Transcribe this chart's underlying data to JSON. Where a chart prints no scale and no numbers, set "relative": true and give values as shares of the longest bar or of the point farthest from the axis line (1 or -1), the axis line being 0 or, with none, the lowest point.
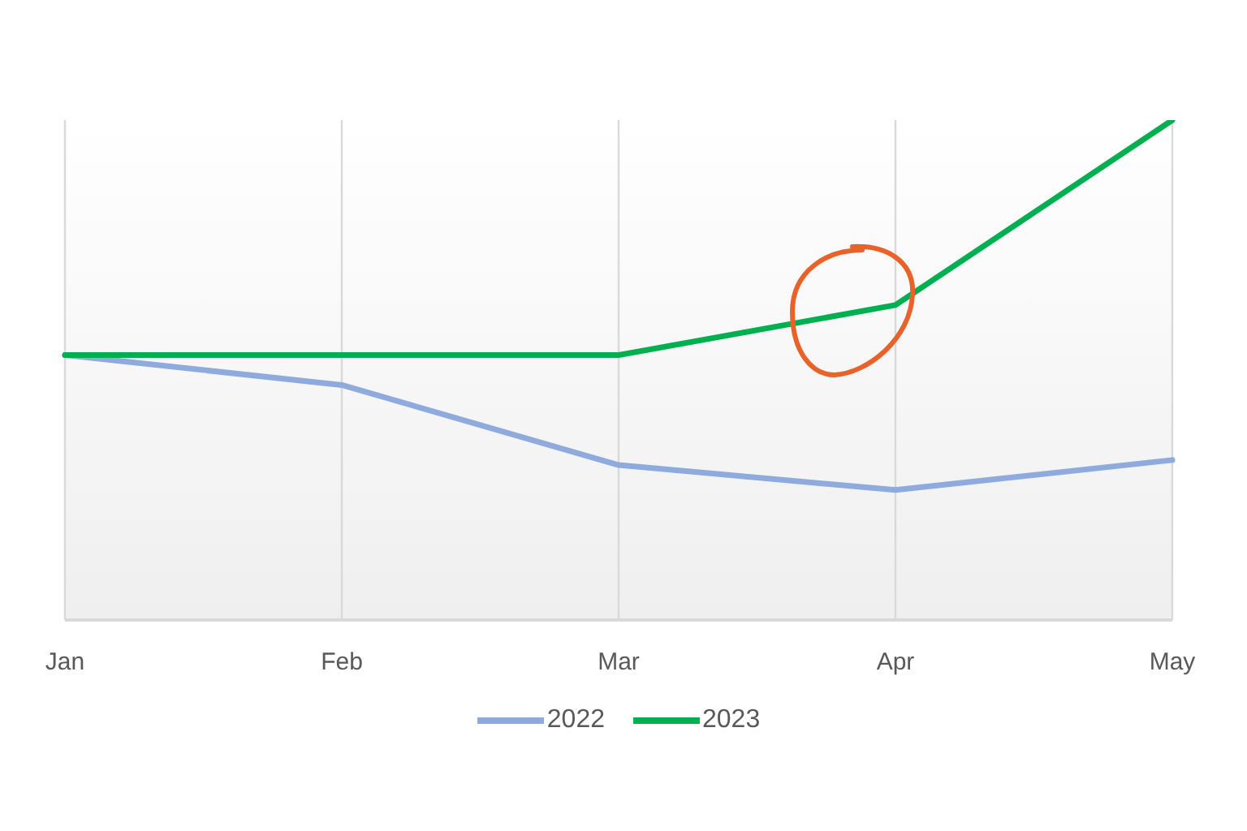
{
  "chart_data": {
    "type": "line",
    "relative": true,
    "categories": [
      "Jan",
      "Feb",
      "Mar",
      "Apr",
      "May"
    ],
    "series": [
      {
        "name": "2022",
        "color": "#8faadc",
        "values": [
          0.53,
          0.47,
          0.31,
          0.26,
          0.32
        ]
      },
      {
        "name": "2023",
        "color": "#00b050",
        "values": [
          0.53,
          0.53,
          0.53,
          0.63,
          1
        ]
      }
    ],
    "grid": "x",
    "legend": "bottom",
    "marker": "none",
    "line_style": "solid"
  }
}
